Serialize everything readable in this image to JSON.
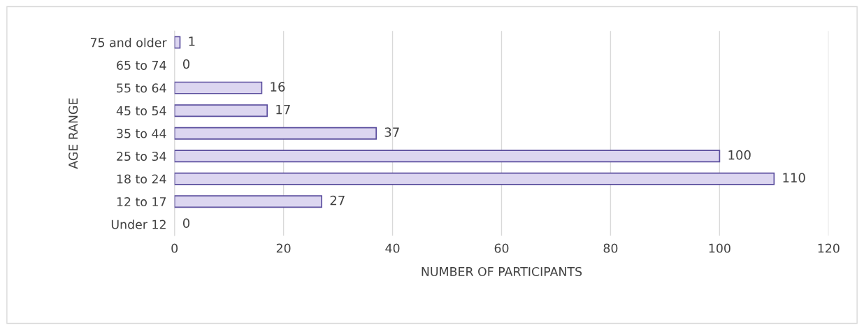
{
  "chart_data": {
    "type": "bar",
    "orientation": "horizontal",
    "xlabel": "NUMBER OF PARTICIPANTS",
    "ylabel": "AGE RANGE",
    "categories": [
      "75 and older",
      "65 to 74",
      "55 to 64",
      "45 to 54",
      "35 to 44",
      "25 to 34",
      "18 to 24",
      "12 to 17",
      "Under 12"
    ],
    "values": [
      1,
      0,
      16,
      17,
      37,
      100,
      110,
      27,
      0
    ],
    "color": "#dcd6f0",
    "xlim": [
      0,
      120
    ],
    "xticks": [
      0,
      20,
      40,
      60,
      80,
      100,
      120
    ],
    "grid": "x",
    "data_labels": true
  }
}
